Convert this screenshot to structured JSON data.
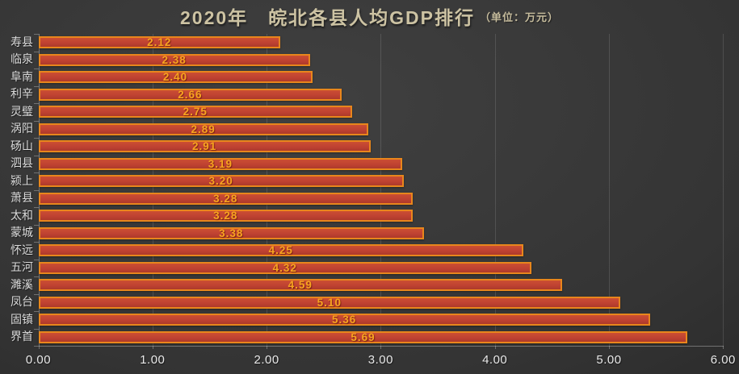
{
  "chart_data": {
    "type": "bar",
    "orientation": "horizontal",
    "title": "2020年　皖北各县人均GDP排行",
    "unit_label": "（单位：万元）",
    "categories": [
      "寿县",
      "临泉",
      "阜南",
      "利辛",
      "灵璧",
      "涡阳",
      "砀山",
      "泗县",
      "颍上",
      "萧县",
      "太和",
      "蒙城",
      "怀远",
      "五河",
      "濉溪",
      "凤台",
      "固镇",
      "界首"
    ],
    "values": [
      2.12,
      2.38,
      2.4,
      2.66,
      2.75,
      2.89,
      2.91,
      3.19,
      3.2,
      3.28,
      3.28,
      3.38,
      4.25,
      4.32,
      4.59,
      5.1,
      5.36,
      5.69
    ],
    "value_label_format": "2-decimals",
    "xlim": [
      0,
      6
    ],
    "x_ticks": [
      0,
      1,
      2,
      3,
      4,
      5,
      6
    ],
    "x_tick_labels": [
      "0.00",
      "1.00",
      "2.00",
      "3.00",
      "4.00",
      "5.00",
      "6.00"
    ],
    "grid": "vertical",
    "legend": "none",
    "colors": {
      "bar_fill": "#bf4232",
      "bar_border": "#e8861c",
      "value_label": "#f7a41f",
      "category_label": "#dadada",
      "tick_label": "#e9e9e9",
      "title": "#cdc3a3",
      "background_center": "#404040",
      "background_edge": "#1d1d1d"
    }
  }
}
